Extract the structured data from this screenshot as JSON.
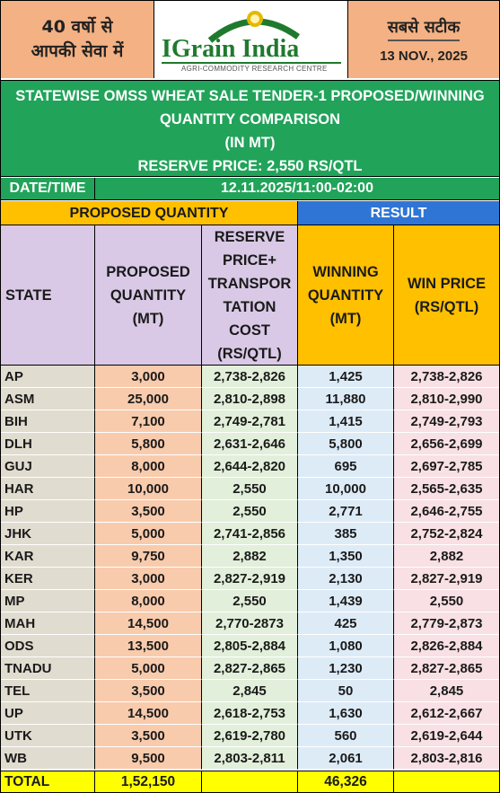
{
  "header": {
    "left_line1": "40 वर्षो से",
    "left_line2": "आपकी सेवा में",
    "logo_title": "IGrain India",
    "logo_subtitle": "AGRI-COMMODITY RESEARCH CENTRE",
    "right_line1": "सबसे सटीक",
    "date": "13 NOV., 2025"
  },
  "title": {
    "line1": "STATEWISE OMSS WHEAT SALE TENDER-1 PROPOSED/WINNING",
    "line2": "QUANTITY COMPARISON",
    "line3": "(IN MT)",
    "line4": "RESERVE PRICE: 2,550 RS/QTL"
  },
  "datetime": {
    "label": "DATE/TIME",
    "value": "12.11.2025/11:00-02:00"
  },
  "sections": {
    "proposed": "PROPOSED QUANTITY",
    "result": "RESULT"
  },
  "columns": {
    "state": "STATE",
    "proposed": [
      "PROPOSED",
      "QUANTITY",
      "(MT)"
    ],
    "reserve": [
      "RESERVE",
      "PRICE+",
      "TRANSPOR",
      "TATION",
      "COST",
      "(RS/QTL)"
    ],
    "winning": [
      "WINNING",
      "QUANTITY",
      "(MT)"
    ],
    "win_price": [
      "WIN PRICE",
      "(RS/QTL)"
    ]
  },
  "rows": [
    [
      "AP",
      "3,000",
      "2,738-2,826",
      "1,425",
      "2,738-2,826"
    ],
    [
      "ASM",
      "25,000",
      "2,810-2,898",
      "11,880",
      "2,810-2,990"
    ],
    [
      "BIH",
      "7,100",
      "2,749-2,781",
      "1,415",
      "2,749-2,793"
    ],
    [
      "DLH",
      "5,800",
      "2,631-2,646",
      "5,800",
      "2,656-2,699"
    ],
    [
      "GUJ",
      "8,000",
      "2,644-2,820",
      "695",
      "2,697-2,785"
    ],
    [
      "HAR",
      "10,000",
      "2,550",
      "10,000",
      "2,565-2,635"
    ],
    [
      "HP",
      "3,500",
      "2,550",
      "2,771",
      "2,646-2,755"
    ],
    [
      "JHK",
      "5,000",
      "2,741-2,856",
      "385",
      "2,752-2,824"
    ],
    [
      "KAR",
      "9,750",
      "2,882",
      "1,350",
      "2,882"
    ],
    [
      "KER",
      "3,000",
      "2,827-2,919",
      "2,130",
      "2,827-2,919"
    ],
    [
      "MP",
      "8,000",
      "2,550",
      "1,439",
      "2,550"
    ],
    [
      "MAH",
      "14,500",
      "2,770-2873",
      "425",
      "2,779-2,873"
    ],
    [
      "ODS",
      "13,500",
      "2,805-2,884",
      "1,080",
      "2,826-2,884"
    ],
    [
      "TNADU",
      "5,000",
      "2,827-2,865",
      "1,230",
      "2,827-2,865"
    ],
    [
      "TEL",
      "3,500",
      "2,845",
      "50",
      "2,845"
    ],
    [
      "UP",
      "14,500",
      "2,618-2,753",
      "1,630",
      "2,612-2,667"
    ],
    [
      "UTK",
      "3,500",
      "2,619-2,780",
      "560",
      "2,619-2,644"
    ],
    [
      "WB",
      "9,500",
      "2,803-2,811",
      "2,061",
      "2,803-2,816"
    ]
  ],
  "total": {
    "label": "TOTAL",
    "proposed": "1,52,150",
    "winning": "46,326"
  },
  "colors": {
    "green": "#21a35a",
    "orange": "#f4b183",
    "yellow": "#ffc000",
    "blue": "#2f75d6",
    "total": "#ffff00"
  }
}
